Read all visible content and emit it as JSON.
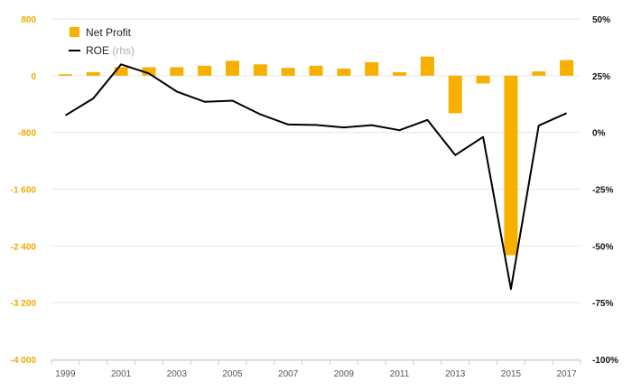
{
  "chart_data": {
    "type": "bar+line",
    "categories": [
      "1999",
      "2000",
      "2001",
      "2002",
      "2003",
      "2004",
      "2005",
      "2006",
      "2007",
      "2008",
      "2009",
      "2010",
      "2011",
      "2012",
      "2013",
      "2014",
      "2015",
      "2016",
      "2017"
    ],
    "x_tick_labels": [
      "1999",
      "2001",
      "2003",
      "2005",
      "2007",
      "2009",
      "2011",
      "2013",
      "2015",
      "2017"
    ],
    "series": [
      {
        "name": "Net Profit",
        "type": "bar",
        "axis": "left",
        "color": "#f7b000",
        "values": [
          20,
          50,
          120,
          120,
          120,
          140,
          210,
          160,
          110,
          140,
          100,
          190,
          50,
          270,
          -530,
          -110,
          -2530,
          60,
          220
        ]
      },
      {
        "name": "ROE",
        "name_suffix": "(rhs)",
        "type": "line",
        "axis": "right",
        "color": "#000000",
        "values": [
          7.5,
          15,
          30,
          26,
          18,
          13.5,
          14,
          8,
          3.5,
          3.3,
          2.2,
          3.2,
          1,
          5.5,
          -10,
          -2,
          -69,
          3,
          8.5
        ]
      }
    ],
    "left_axis": {
      "min": -4000,
      "max": 800,
      "ticks": [
        800,
        0,
        -800,
        -1600,
        -2400,
        -3200,
        -4000
      ],
      "tick_labels": [
        "800",
        "0",
        "-800",
        "-1 600",
        "-2 400",
        "-3 200",
        "-4 000"
      ]
    },
    "right_axis": {
      "min": -100,
      "max": 50,
      "ticks": [
        50,
        25,
        0,
        -25,
        -50,
        -75,
        -100
      ],
      "tick_labels": [
        "50%",
        "25%",
        "0%",
        "-25%",
        "-50%",
        "-75%",
        "-100%"
      ]
    },
    "legend": {
      "position": "top-left"
    },
    "grid": true
  }
}
